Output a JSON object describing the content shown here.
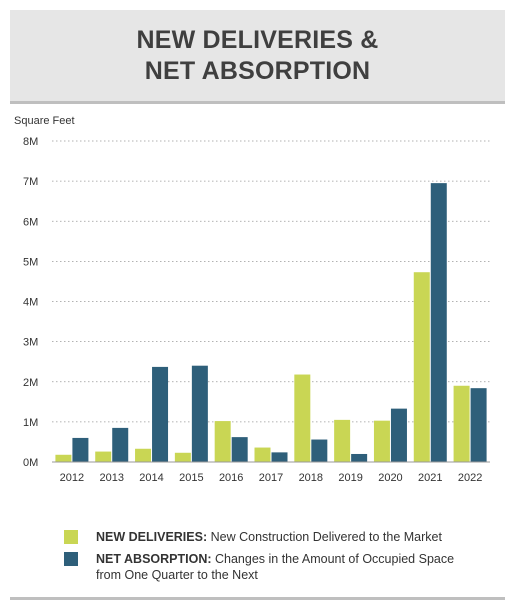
{
  "header": {
    "title_line1": "NEW DELIVERIES &",
    "title_line2": "NET ABSORPTION"
  },
  "colors": {
    "deliveries": "#c9d654",
    "absorption": "#2e5f7a",
    "header_bg": "#e6e6e6",
    "grid": "#999999"
  },
  "legend": {
    "items": [
      {
        "key": "NEW DELIVERIES:",
        "text": "New Construction Delivered to the Market",
        "color": "#c9d654"
      },
      {
        "key": "NET ABSORPTION:",
        "text": "Changes in the Amount of Occupied Space",
        "text2": "from One Quarter to the Next",
        "color": "#2e5f7a"
      }
    ]
  },
  "chart_data": {
    "type": "bar",
    "title": "",
    "ylabel": "Square Feet",
    "xlabel": "",
    "ylim": [
      0,
      8000000
    ],
    "yticks": [
      0,
      1000000,
      2000000,
      3000000,
      4000000,
      5000000,
      6000000,
      7000000,
      8000000
    ],
    "ytick_labels": [
      "0M",
      "1M",
      "2M",
      "3M",
      "4M",
      "5M",
      "6M",
      "7M",
      "8M"
    ],
    "grid": true,
    "categories": [
      "2012",
      "2013",
      "2014",
      "2015",
      "2016",
      "2017",
      "2018",
      "2019",
      "2020",
      "2021",
      "2022"
    ],
    "series": [
      {
        "name": "NEW DELIVERIES",
        "values": [
          180000,
          260000,
          330000,
          230000,
          1020000,
          360000,
          2180000,
          1050000,
          1030000,
          4730000,
          1900000
        ]
      },
      {
        "name": "NET ABSORPTION",
        "values": [
          600000,
          850000,
          2370000,
          2400000,
          620000,
          240000,
          560000,
          200000,
          1330000,
          6950000,
          1840000
        ]
      }
    ]
  }
}
